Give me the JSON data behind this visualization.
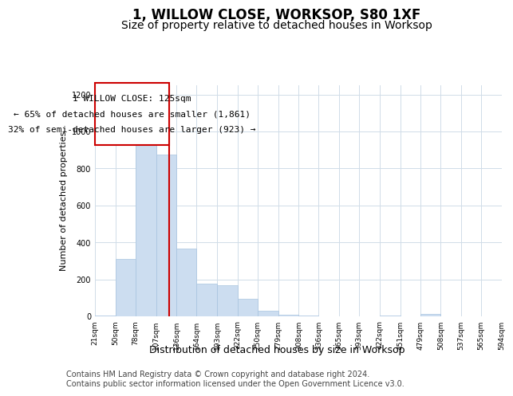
{
  "title": "1, WILLOW CLOSE, WORKSOP, S80 1XF",
  "subtitle": "Size of property relative to detached houses in Worksop",
  "xlabel": "Distribution of detached houses by size in Worksop",
  "ylabel": "Number of detached properties",
  "bar_color": "#ccddf0",
  "bar_edgecolor": "#a8c4e0",
  "vline_x": 125,
  "vline_color": "#cc0000",
  "annotation_title": "1 WILLOW CLOSE: 125sqm",
  "annotation_line1": "← 65% of detached houses are smaller (1,861)",
  "annotation_line2": "32% of semi-detached houses are larger (923) →",
  "annotation_box_color": "#cc0000",
  "bin_edges": [
    21,
    50,
    78,
    107,
    136,
    164,
    193,
    222,
    250,
    279,
    308,
    336,
    365,
    393,
    422,
    451,
    479,
    508,
    537,
    565,
    594
  ],
  "bar_heights": [
    5,
    310,
    975,
    875,
    365,
    175,
    170,
    95,
    30,
    10,
    5,
    0,
    0,
    0,
    5,
    0,
    15,
    0,
    0,
    0
  ],
  "tick_labels": [
    "21sqm",
    "50sqm",
    "78sqm",
    "107sqm",
    "136sqm",
    "164sqm",
    "193sqm",
    "222sqm",
    "250sqm",
    "279sqm",
    "308sqm",
    "336sqm",
    "365sqm",
    "393sqm",
    "422sqm",
    "451sqm",
    "479sqm",
    "508sqm",
    "537sqm",
    "565sqm",
    "594sqm"
  ],
  "ylim": [
    0,
    1250
  ],
  "yticks": [
    0,
    200,
    400,
    600,
    800,
    1000,
    1200
  ],
  "background_color": "#ffffff",
  "grid_color": "#d0dce8",
  "footer_line1": "Contains HM Land Registry data © Crown copyright and database right 2024.",
  "footer_line2": "Contains public sector information licensed under the Open Government Licence v3.0.",
  "title_fontsize": 12,
  "subtitle_fontsize": 10,
  "ylabel_fontsize": 8,
  "xlabel_fontsize": 9,
  "annot_fontsize": 8,
  "tick_fontsize": 6.5,
  "footer_fontsize": 7
}
